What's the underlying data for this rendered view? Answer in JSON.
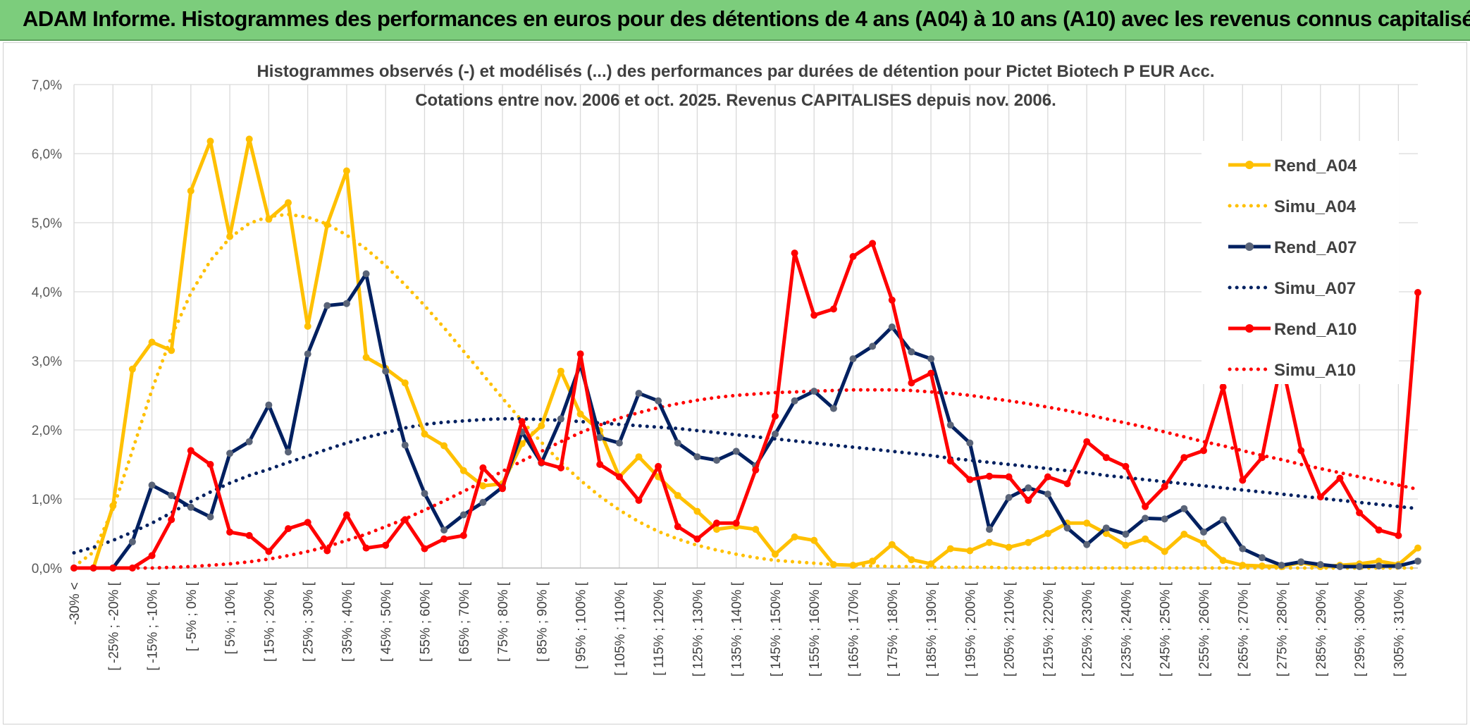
{
  "header": {
    "title": "ADAM Informe. Histogrammes des performances en euros pour des détentions de 4 ans (A04) à 10 ans (A10) avec les revenus connus capitalisés"
  },
  "chart_data": {
    "type": "line",
    "title": "Histogrammes observés (-) et modélisés (...) des performances par durées de détention pour Pictet Biotech P EUR Acc.",
    "subtitle": "Cotations entre nov. 2006 et oct. 2025. Revenus CAPITALISES depuis nov. 2006.",
    "ylim": [
      0,
      7
    ],
    "yticks": [
      "0,0%",
      "1,0%",
      "2,0%",
      "3,0%",
      "4,0%",
      "5,0%",
      "6,0%",
      "7,0%"
    ],
    "xtick_labels": [
      "-30% <",
      "[ -25% ; -20% [",
      "[ -15% ; -10% [",
      "[ -5% ; 0% [",
      "[ 5% ; 10% [",
      "[ 15% ; 20% [",
      "[ 25% ; 30% [",
      "[ 35% ; 40% [",
      "[ 45% ; 50% [",
      "[ 55% ; 60% [",
      "[ 65% ; 70% [",
      "[ 75% ; 80% [",
      "[ 85% ; 90% [",
      "[ 95% ; 100% [",
      "[ 105% ; 110% [",
      "[ 115% ; 120% [",
      "[ 125% ; 130% [",
      "[ 135% ; 140% [",
      "[ 145% ; 150% [",
      "[ 155% ; 160% [",
      "[ 165% ; 170% [",
      "[ 175% ; 180% [",
      "[ 185% ; 190% [",
      "[ 195% ; 200% [",
      "[ 205% ; 210% [",
      "[ 215% ; 220% [",
      "[ 225% ; 230% [",
      "[ 235% ; 240% [",
      "[ 245% ; 250% [",
      "[ 255% ; 260% [",
      "[ 265% ; 270% [",
      "[ 275% ; 280% [",
      "[ 285% ; 290% [",
      "[ 295% ; 300% [",
      "[ 305% ; 310% ["
    ],
    "n_categories": 70,
    "grid": true,
    "legend_position": "right",
    "series": [
      {
        "name": "Rend_A04",
        "style": "solid",
        "color": "#ffc000",
        "values": [
          0,
          0,
          0.9,
          2.88,
          3.27,
          3.15,
          5.46,
          6.18,
          4.8,
          6.21,
          5.05,
          5.29,
          3.5,
          4.97,
          5.75,
          3.05,
          2.89,
          2.68,
          1.94,
          1.77,
          1.41,
          1.19,
          1.22,
          1.8,
          2.06,
          2.85,
          2.23,
          1.99,
          1.32,
          1.61,
          1.32,
          1.05,
          0.82,
          0.56,
          0.6,
          0.56,
          0.2,
          0.45,
          0.4,
          0.05,
          0.04,
          0.1,
          0.34,
          0.12,
          0.06,
          0.28,
          0.25,
          0.37,
          0.3,
          0.37,
          0.5,
          0.65,
          0.65,
          0.5,
          0.33,
          0.42,
          0.24,
          0.49,
          0.36,
          0.11,
          0.04,
          0.03,
          0.02,
          0.08,
          0.02,
          0.04,
          0.06,
          0.1,
          0.05,
          0.29
        ]
      },
      {
        "name": "Simu_A04",
        "style": "dotted",
        "color": "#ffc000",
        "values": [
          0.02,
          0.23,
          0.85,
          1.7,
          2.58,
          3.35,
          3.98,
          4.45,
          4.78,
          4.99,
          5.09,
          5.12,
          5.08,
          4.98,
          4.82,
          4.62,
          4.38,
          4.1,
          3.8,
          3.48,
          3.14,
          2.8,
          2.46,
          2.13,
          1.82,
          1.53,
          1.27,
          1.04,
          0.84,
          0.67,
          0.53,
          0.42,
          0.33,
          0.26,
          0.2,
          0.15,
          0.11,
          0.09,
          0.07,
          0.05,
          0.04,
          0.03,
          0.02,
          0.02,
          0.01,
          0.01,
          0.01,
          0.01,
          0,
          0,
          0,
          0,
          0,
          0,
          0,
          0,
          0,
          0,
          0,
          0,
          0,
          0,
          0,
          0,
          0,
          0,
          0,
          0,
          0,
          0
        ]
      },
      {
        "name": "Rend_A07",
        "style": "solid",
        "color": "#002060",
        "values": [
          0,
          0,
          0,
          0.38,
          1.2,
          1.05,
          0.88,
          0.74,
          1.66,
          1.83,
          2.36,
          1.68,
          3.1,
          3.8,
          3.83,
          4.26,
          2.85,
          1.78,
          1.08,
          0.55,
          0.77,
          0.95,
          1.17,
          1.97,
          1.52,
          2.16,
          2.95,
          1.89,
          1.81,
          2.53,
          2.42,
          1.81,
          1.61,
          1.56,
          1.69,
          1.48,
          1.94,
          2.42,
          2.56,
          2.31,
          3.03,
          3.21,
          3.49,
          3.13,
          3.03,
          2.07,
          1.81,
          0.56,
          1.02,
          1.16,
          1.07,
          0.58,
          0.34,
          0.58,
          0.49,
          0.72,
          0.71,
          0.86,
          0.52,
          0.7,
          0.28,
          0.15,
          0.04,
          0.09,
          0.05,
          0.02,
          0.02,
          0.03,
          0.03,
          0.1
        ]
      },
      {
        "name": "Simu_A07",
        "style": "dotted",
        "color": "#002060",
        "values": [
          0.22,
          0.3,
          0.4,
          0.52,
          0.65,
          0.8,
          0.96,
          1.1,
          1.23,
          1.34,
          1.43,
          1.53,
          1.62,
          1.72,
          1.81,
          1.89,
          1.96,
          2.03,
          2.08,
          2.11,
          2.13,
          2.15,
          2.16,
          2.16,
          2.15,
          2.14,
          2.12,
          2.1,
          2.08,
          2.06,
          2.04,
          2.02,
          1.99,
          1.96,
          1.93,
          1.9,
          1.87,
          1.84,
          1.81,
          1.78,
          1.75,
          1.72,
          1.69,
          1.66,
          1.63,
          1.59,
          1.56,
          1.53,
          1.5,
          1.47,
          1.44,
          1.41,
          1.38,
          1.34,
          1.31,
          1.28,
          1.25,
          1.22,
          1.19,
          1.16,
          1.13,
          1.1,
          1.07,
          1.04,
          1.01,
          0.98,
          0.95,
          0.92,
          0.89,
          0.86
        ]
      },
      {
        "name": "Rend_A10",
        "style": "solid",
        "color": "#ff0000",
        "values": [
          0,
          0,
          0,
          0,
          0.18,
          0.7,
          1.7,
          1.5,
          0.52,
          0.47,
          0.24,
          0.57,
          0.66,
          0.25,
          0.77,
          0.29,
          0.33,
          0.7,
          0.28,
          0.42,
          0.47,
          1.45,
          1.15,
          2.12,
          1.53,
          1.45,
          3.1,
          1.5,
          1.32,
          0.98,
          1.47,
          0.6,
          0.42,
          0.65,
          0.65,
          1.42,
          2.2,
          4.56,
          3.66,
          3.75,
          4.51,
          4.7,
          3.88,
          2.68,
          2.82,
          1.55,
          1.28,
          1.33,
          1.32,
          0.98,
          1.32,
          1.22,
          1.83,
          1.6,
          1.47,
          0.89,
          1.18,
          1.6,
          1.7,
          2.62,
          1.27,
          1.6,
          3.0,
          1.7,
          1.03,
          1.3,
          0.8,
          0.55,
          0.47,
          3.99
        ]
      },
      {
        "name": "Simu_A10",
        "style": "dotted",
        "color": "#ff0000",
        "values": [
          0,
          0,
          0,
          0,
          0,
          0.01,
          0.02,
          0.04,
          0.06,
          0.09,
          0.13,
          0.18,
          0.24,
          0.31,
          0.4,
          0.49,
          0.6,
          0.71,
          0.84,
          0.97,
          1.11,
          1.25,
          1.4,
          1.55,
          1.69,
          1.83,
          1.96,
          2.07,
          2.17,
          2.25,
          2.32,
          2.38,
          2.43,
          2.47,
          2.5,
          2.52,
          2.54,
          2.55,
          2.56,
          2.57,
          2.58,
          2.58,
          2.58,
          2.57,
          2.55,
          2.53,
          2.5,
          2.46,
          2.42,
          2.38,
          2.33,
          2.28,
          2.22,
          2.16,
          2.1,
          2.04,
          1.97,
          1.9,
          1.83,
          1.77,
          1.7,
          1.63,
          1.57,
          1.5,
          1.44,
          1.38,
          1.32,
          1.26,
          1.2,
          1.14
        ]
      }
    ]
  }
}
